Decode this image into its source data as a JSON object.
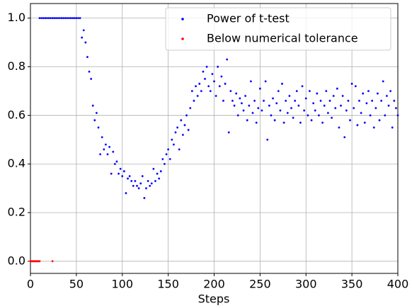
{
  "chart_data": {
    "type": "scatter",
    "x_label": "Steps",
    "xlim": [
      0,
      400
    ],
    "xticks": [
      0,
      50,
      100,
      150,
      200,
      250,
      300,
      350,
      400
    ],
    "ylim": [
      -0.05,
      1.06
    ],
    "yticks": [
      {
        "value": 0,
        "label": "0.0"
      },
      0.2,
      0.4,
      0.6,
      0.8,
      {
        "value": 1,
        "label": "1.0"
      }
    ],
    "grid": true,
    "legend": "upper right",
    "series": [
      {
        "name": "Power of t-test",
        "color": "#0000ff",
        "x": [
          10,
          12,
          14,
          16,
          18,
          20,
          22,
          24,
          26,
          28,
          30,
          32,
          34,
          36,
          38,
          40,
          42,
          44,
          46,
          48,
          50,
          52,
          54,
          56,
          58,
          60,
          62,
          64,
          66,
          68,
          70,
          72,
          74,
          76,
          78,
          80,
          82,
          84,
          86,
          88,
          90,
          92,
          94,
          96,
          98,
          100,
          102,
          104,
          106,
          108,
          110,
          112,
          114,
          116,
          118,
          120,
          122,
          124,
          126,
          128,
          130,
          132,
          134,
          136,
          138,
          140,
          142,
          144,
          146,
          148,
          150,
          152,
          154,
          156,
          158,
          160,
          162,
          164,
          166,
          168,
          170,
          172,
          174,
          176,
          178,
          180,
          182,
          184,
          186,
          188,
          190,
          192,
          194,
          196,
          198,
          200,
          202,
          204,
          206,
          208,
          210,
          212,
          214,
          216,
          218,
          220,
          222,
          224,
          226,
          228,
          230,
          232,
          234,
          236,
          238,
          240,
          242,
          244,
          246,
          248,
          250,
          252,
          254,
          256,
          258,
          260,
          262,
          264,
          266,
          268,
          270,
          272,
          274,
          276,
          278,
          280,
          282,
          284,
          286,
          288,
          290,
          292,
          294,
          296,
          298,
          300,
          302,
          304,
          306,
          308,
          310,
          312,
          314,
          316,
          318,
          320,
          322,
          324,
          326,
          328,
          330,
          332,
          334,
          336,
          338,
          340,
          342,
          344,
          346,
          348,
          350,
          352,
          354,
          356,
          358,
          360,
          362,
          364,
          366,
          368,
          370,
          372,
          374,
          376,
          378,
          380,
          382,
          384,
          386,
          388,
          390,
          392,
          394,
          396,
          398,
          400
        ],
        "values": [
          1,
          1,
          1,
          1,
          1,
          1,
          1,
          1,
          1,
          1,
          1,
          1,
          1,
          1,
          1,
          1,
          1,
          1,
          1,
          1,
          1,
          1,
          1,
          0.92,
          0.95,
          0.9,
          0.84,
          0.78,
          0.75,
          0.64,
          0.58,
          0.61,
          0.55,
          0.44,
          0.51,
          0.46,
          0.48,
          0.44,
          0.47,
          0.36,
          0.45,
          0.4,
          0.41,
          0.36,
          0.38,
          0.35,
          0.37,
          0.28,
          0.34,
          0.35,
          0.33,
          0.31,
          0.33,
          0.31,
          0.3,
          0.32,
          0.35,
          0.26,
          0.3,
          0.33,
          0.31,
          0.32,
          0.38,
          0.33,
          0.36,
          0.34,
          0.37,
          0.42,
          0.4,
          0.44,
          0.46,
          0.42,
          0.5,
          0.48,
          0.53,
          0.55,
          0.46,
          0.58,
          0.52,
          0.56,
          0.6,
          0.54,
          0.63,
          0.7,
          0.66,
          0.72,
          0.68,
          0.73,
          0.7,
          0.78,
          0.75,
          0.8,
          0.72,
          0.7,
          0.77,
          0.74,
          0.68,
          0.8,
          0.72,
          0.76,
          0.66,
          0.73,
          0.83,
          0.53,
          0.7,
          0.66,
          0.64,
          0.69,
          0.6,
          0.67,
          0.65,
          0.62,
          0.68,
          0.58,
          0.64,
          0.74,
          0.61,
          0.66,
          0.57,
          0.63,
          0.71,
          0.62,
          0.66,
          0.74,
          0.5,
          0.64,
          0.6,
          0.67,
          0.58,
          0.65,
          0.7,
          0.62,
          0.73,
          0.57,
          0.66,
          0.61,
          0.68,
          0.63,
          0.59,
          0.66,
          0.7,
          0.64,
          0.57,
          0.72,
          0.62,
          0.67,
          0.6,
          0.7,
          0.58,
          0.65,
          0.62,
          0.69,
          0.6,
          0.66,
          0.57,
          0.64,
          0.7,
          0.61,
          0.66,
          0.59,
          0.68,
          0.63,
          0.71,
          0.55,
          0.64,
          0.68,
          0.51,
          0.62,
          0.66,
          0.58,
          0.73,
          0.63,
          0.72,
          0.56,
          0.66,
          0.61,
          0.69,
          0.57,
          0.65,
          0.7,
          0.6,
          0.66,
          0.55,
          0.63,
          0.69,
          0.58,
          0.66,
          0.74,
          0.6,
          0.68,
          0.64,
          0.7,
          0.55,
          0.66,
          0.63,
          0.6
        ]
      },
      {
        "name": "Below numerical tolerance",
        "color": "#ff0000",
        "x": [
          0,
          1,
          2,
          3,
          4,
          5,
          6,
          7,
          8,
          9,
          10,
          24
        ],
        "values": [
          0,
          0,
          0,
          0,
          0,
          0,
          0,
          0,
          0,
          0,
          0,
          0
        ]
      }
    ]
  }
}
